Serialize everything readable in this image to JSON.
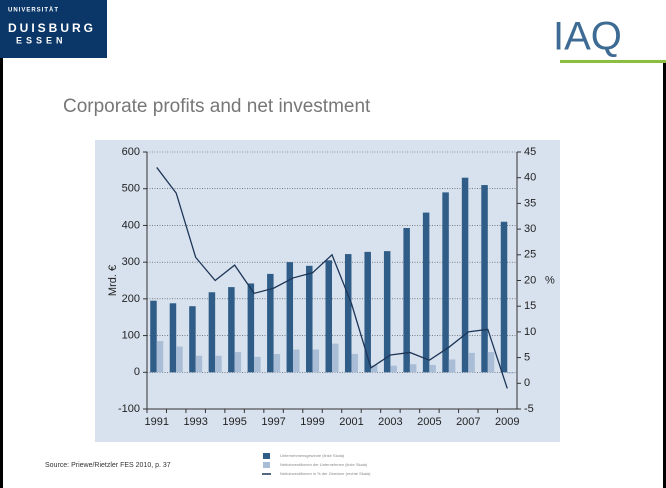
{
  "header": {
    "university": [
      "UNIVERSITÄT",
      "DUISBURG",
      "ESSEN"
    ],
    "logo": "IAQ"
  },
  "chart_data": {
    "type": "bar",
    "title": "Corporate profits and net investment",
    "categories": [
      "1991",
      null,
      "1993",
      null,
      "1995",
      null,
      "1997",
      null,
      "1999",
      null,
      "2001",
      null,
      "2003",
      null,
      "2005",
      null,
      "2007",
      null,
      "2009"
    ],
    "series": [
      {
        "name": "Unternehmensgewinne (linke Skala)",
        "color": "#2f5d88",
        "values": [
          195,
          188,
          180,
          218,
          232,
          242,
          268,
          300,
          290,
          305,
          322,
          328,
          330,
          393,
          435,
          490,
          530,
          510,
          410
        ]
      },
      {
        "name": "Nettoinvestitionen der Unternehmen (linke Skala)",
        "color": "#a9bdd6",
        "values": [
          85,
          70,
          45,
          45,
          55,
          42,
          50,
          62,
          62,
          78,
          50,
          20,
          18,
          22,
          20,
          35,
          53,
          55,
          -3
        ]
      },
      {
        "name": "Nettoinvestitionen in % der Gewinne (rechte Skala)",
        "color": "#1d3557",
        "axis": "y2",
        "values": [
          42,
          37,
          24.5,
          20,
          23,
          17.5,
          18.5,
          20.5,
          21.5,
          25,
          15.5,
          3,
          5.5,
          6,
          4.5,
          7,
          10,
          10.5,
          -1
        ]
      }
    ],
    "ylabel": "Mrd. €",
    "y2label": "%",
    "ylim": [
      -100,
      600
    ],
    "yticks": [
      -100,
      0,
      100,
      200,
      300,
      400,
      500,
      600
    ],
    "y2lim": [
      -5,
      45
    ],
    "y2ticks": [
      -5,
      0,
      5,
      10,
      15,
      20,
      25,
      30,
      35,
      40,
      45
    ],
    "grid": true
  },
  "source": "Source: Priewe/Rietzler FES 2010, p. 37"
}
